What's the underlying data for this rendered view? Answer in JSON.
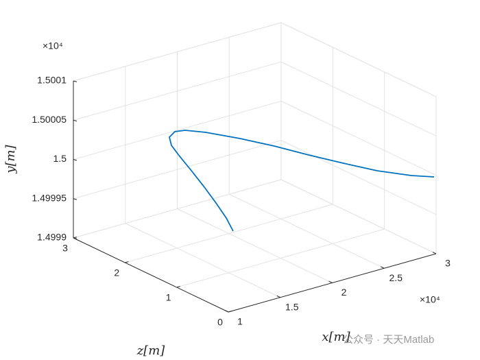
{
  "chart_data": {
    "type": "line3d",
    "xlabel": "x[m]",
    "ylabel": "y[m]",
    "zlabel": "z[m]",
    "x_exponent": "×10⁴",
    "y_exponent": "×10⁴",
    "xlim": [
      10000,
      30000
    ],
    "xticks": [
      {
        "value": 10000,
        "label": "1"
      },
      {
        "value": 15000,
        "label": "1.5"
      },
      {
        "value": 20000,
        "label": "2"
      },
      {
        "value": 25000,
        "label": "2.5"
      },
      {
        "value": 30000,
        "label": "3"
      }
    ],
    "ylim": [
      14999,
      15001
    ],
    "yticks": [
      {
        "value": 14999,
        "label": "1.4999"
      },
      {
        "value": 14999.5,
        "label": "1.49995"
      },
      {
        "value": 15000,
        "label": "1.5"
      },
      {
        "value": 15000.5,
        "label": "1.50005"
      },
      {
        "value": 15001,
        "label": "1.5001"
      }
    ],
    "zlim": [
      0,
      3
    ],
    "zticks": [
      0,
      1,
      2,
      3
    ],
    "grid": true,
    "series": [
      {
        "color": "#0072bd",
        "x": [
          16430,
          15770,
          14780,
          13660,
          12470,
          11280,
          10240,
          10290,
          10820,
          11560,
          13290,
          16090,
          18900,
          21450,
          24010,
          26560,
          28860,
          30000
        ],
        "y": [
          14999.415,
          14999.605,
          14999.834,
          15000.077,
          15000.321,
          15000.558,
          15000.752,
          15000.839,
          15000.889,
          15000.895,
          15000.82,
          15000.669,
          15000.5,
          15000.339,
          15000.187,
          15000.043,
          14999.959,
          14999.966
        ],
        "z": [
          1.2,
          1.2,
          1.2,
          1.2,
          1.2,
          1.2,
          1.15,
          1.2,
          1.2,
          1.15,
          1.1,
          1.0,
          0.9,
          0.75,
          0.6,
          0.45,
          0.25,
          0.04
        ]
      }
    ],
    "watermark": "公众号 · 天天Matlab"
  }
}
